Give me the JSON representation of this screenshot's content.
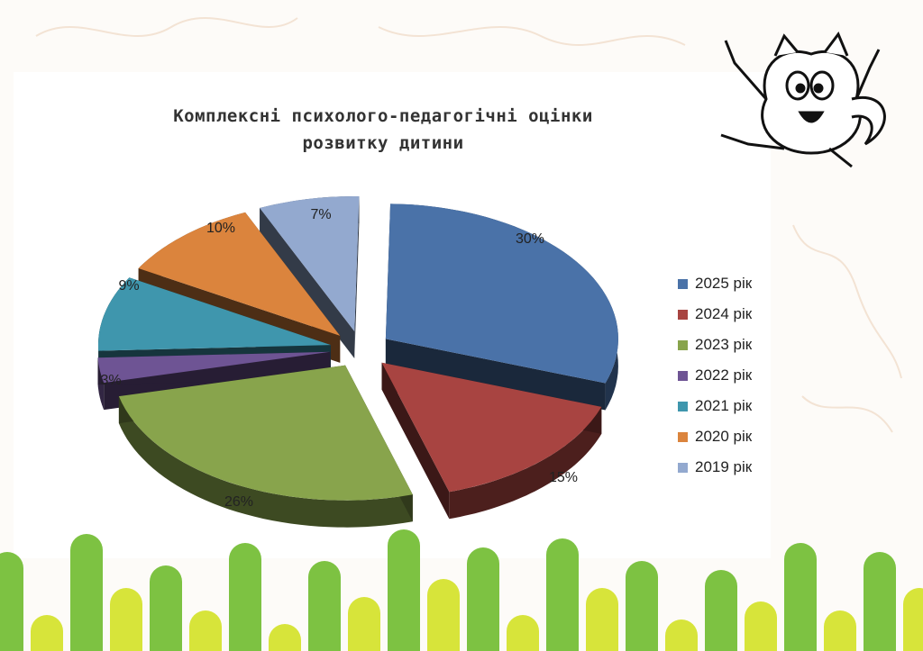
{
  "chart_data": {
    "type": "pie",
    "title": "Комплексні психолого-педагогічні оцінки розвитку дитини",
    "title_lines": [
      "Комплексні психолого-педагогічні оцінки",
      "розвитку дитини"
    ],
    "three_d": true,
    "exploded": true,
    "legend_position": "right",
    "slices": [
      {
        "name": "2025 рік",
        "value": 30,
        "label": "30%",
        "color": "#4a72a8"
      },
      {
        "name": "2024 рік",
        "value": 15,
        "label": "15%",
        "color": "#a84441"
      },
      {
        "name": "2023 рік",
        "value": 26,
        "label": "26%",
        "color": "#88a44c"
      },
      {
        "name": "2022 рік",
        "value": 3,
        "label": "3%",
        "color": "#6e5494"
      },
      {
        "name": "2021 рік",
        "value": 9,
        "label": "9%",
        "color": "#3f96ad"
      },
      {
        "name": "2020 рік",
        "value": 10,
        "label": "10%",
        "color": "#db843d"
      },
      {
        "name": "2019 рік",
        "value": 7,
        "label": "7%",
        "color": "#93a9cf"
      }
    ]
  },
  "decor": {
    "cat_icon": "cartoon-cat-icon",
    "bars_colors": [
      "#7dc242",
      "#d7e43a"
    ]
  }
}
